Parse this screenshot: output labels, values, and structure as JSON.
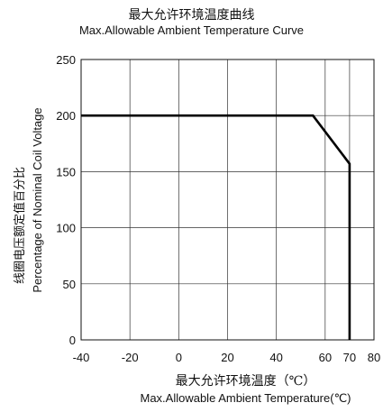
{
  "chart_data": {
    "type": "line",
    "title": "最大允许环境温度曲线",
    "subtitle": "Max.Allowable Ambient Temperature Curve",
    "xlabel": "最大允许环境温度（℃）",
    "xlabel_en": "Max.Allowable Ambient Temperature(℃)",
    "ylabel": "线圈电压额定值百分比",
    "ylabel_en": "Percentage of Nominal Coil Voltage",
    "xlim": [
      -40,
      80
    ],
    "ylim": [
      0,
      250
    ],
    "grid": true,
    "x_ticks": [
      "-40",
      "-20",
      "0",
      "20",
      "40",
      "60",
      "70",
      "80"
    ],
    "y_ticks": [
      "0",
      "50",
      "100",
      "150",
      "200",
      "250"
    ],
    "series": [
      {
        "x": [
          -40,
          55,
          70,
          70
        ],
        "y": [
          200,
          200,
          157,
          0
        ]
      }
    ],
    "line_color": "#000000"
  }
}
